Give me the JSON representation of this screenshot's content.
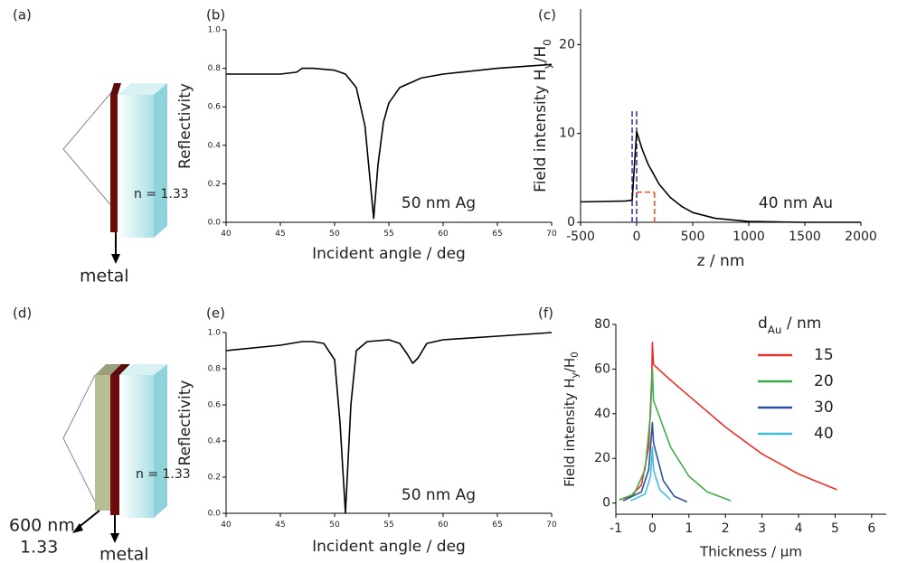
{
  "chart_data": [
    {
      "type": "line",
      "panel_label": "(b)",
      "xlabel": "Incident angle / deg",
      "ylabel": "Reflectivity",
      "annotation": "50 nm Ag",
      "xlim": [
        40,
        70
      ],
      "ylim": [
        0,
        1
      ],
      "xticks": [
        40,
        45,
        50,
        55,
        60,
        65,
        70
      ],
      "yticks": [
        {
          "value": 0,
          "label": "0.0"
        },
        {
          "value": 0.2,
          "label": "0.2"
        },
        {
          "value": 0.4,
          "label": "0.4"
        },
        {
          "value": 0.6,
          "label": "0.6"
        },
        {
          "value": 0.8,
          "label": "0.8"
        },
        {
          "value": 1,
          "label": "1.0"
        }
      ],
      "series": [
        {
          "color": "#000000",
          "x": [
            40,
            45,
            46.5,
            47,
            48,
            50,
            51,
            52,
            52.8,
            53.3,
            53.6,
            54,
            54.5,
            55,
            56,
            58,
            60,
            65,
            70
          ],
          "values": [
            0.77,
            0.77,
            0.78,
            0.8,
            0.8,
            0.79,
            0.77,
            0.7,
            0.5,
            0.2,
            0.02,
            0.3,
            0.52,
            0.62,
            0.7,
            0.75,
            0.77,
            0.8,
            0.82
          ]
        }
      ]
    },
    {
      "type": "line",
      "panel_label": "(c)",
      "xlabel": "z / nm",
      "ylabel_parts": [
        {
          "text": "Field intensity H"
        },
        {
          "text": "y",
          "sub": true
        },
        {
          "text": "/H"
        },
        {
          "text": "0",
          "sub": true
        }
      ],
      "annotation": "40 nm Au",
      "xlim": [
        -500,
        2000
      ],
      "ylim": [
        0,
        24
      ],
      "xticks": [
        -500,
        0,
        500,
        1000,
        1500,
        2000
      ],
      "yticks": [
        0,
        10,
        20
      ],
      "dashed_lines": [
        {
          "x": [
            -40,
            -40
          ],
          "y": [
            0,
            12.5
          ],
          "color": "#2e3192"
        },
        {
          "x": [
            0,
            0
          ],
          "y": [
            0,
            12.5
          ],
          "color": "#2e3192"
        },
        {
          "x": [
            0,
            160
          ],
          "y": [
            3.4,
            3.4
          ],
          "color": "#f04e23"
        },
        {
          "x": [
            160,
            160
          ],
          "y": [
            0,
            3.4
          ],
          "color": "#f04e23"
        }
      ],
      "series": [
        {
          "color": "#000000",
          "x": [
            -500,
            -100,
            -40,
            0,
            50,
            100,
            200,
            300,
            400,
            500,
            700,
            1000,
            1500,
            2000
          ],
          "values": [
            2.3,
            2.4,
            2.5,
            10.2,
            8.2,
            6.6,
            4.3,
            2.8,
            1.8,
            1.1,
            0.45,
            0.1,
            0,
            0
          ]
        }
      ]
    },
    {
      "type": "line",
      "panel_label": "(e)",
      "xlabel": "Incident angle / deg",
      "ylabel": "Reflectivity",
      "annotation": "50 nm Ag",
      "xlim": [
        40,
        70
      ],
      "ylim": [
        0,
        1
      ],
      "xticks": [
        40,
        45,
        50,
        55,
        60,
        65,
        70
      ],
      "yticks": [
        {
          "value": 0,
          "label": "0.0"
        },
        {
          "value": 0.2,
          "label": "0.2"
        },
        {
          "value": 0.4,
          "label": "0.4"
        },
        {
          "value": 0.6,
          "label": "0.6"
        },
        {
          "value": 0.8,
          "label": "0.8"
        },
        {
          "value": 1,
          "label": "1.0"
        }
      ],
      "series": [
        {
          "color": "#000000",
          "x": [
            40,
            45,
            47,
            48,
            49,
            50,
            50.5,
            51,
            51.5,
            52,
            53,
            55,
            56,
            56.7,
            57.2,
            57.7,
            58.5,
            60,
            65,
            70
          ],
          "values": [
            0.9,
            0.93,
            0.95,
            0.95,
            0.94,
            0.85,
            0.5,
            0.0,
            0.6,
            0.9,
            0.95,
            0.96,
            0.94,
            0.88,
            0.83,
            0.86,
            0.94,
            0.96,
            0.98,
            1.0
          ]
        }
      ]
    },
    {
      "type": "line",
      "panel_label": "(f)",
      "xlabel": "Thickness / µm",
      "ylabel_parts": [
        {
          "text": "Field intensity H"
        },
        {
          "text": "y",
          "sub": true
        },
        {
          "text": "/H"
        },
        {
          "text": "0",
          "sub": true
        }
      ],
      "legend_title_parts": [
        {
          "text": "d"
        },
        {
          "text": "Au",
          "sub": true
        },
        {
          "text": " / nm"
        }
      ],
      "xlim": [
        -1,
        6.4
      ],
      "ylim": [
        -5,
        80
      ],
      "xticks": [
        -1,
        0,
        1,
        2,
        3,
        4,
        5,
        6
      ],
      "yticks": [
        0,
        20,
        40,
        60,
        80
      ],
      "series": [
        {
          "name": "15",
          "color": "#e8312a",
          "x": [
            -0.9,
            -0.6,
            -0.3,
            -0.1,
            -0.02,
            0,
            0.03,
            0.5,
            1,
            2,
            3,
            4,
            5.05
          ],
          "values": [
            1.5,
            3,
            8,
            25,
            55,
            72,
            62,
            55,
            48,
            34,
            22,
            13,
            6
          ]
        },
        {
          "name": "20",
          "color": "#3fae49",
          "x": [
            -0.9,
            -0.5,
            -0.2,
            -0.05,
            0,
            0.03,
            0.5,
            1,
            1.5,
            2.15
          ],
          "values": [
            1.5,
            4,
            15,
            40,
            60,
            46,
            25,
            12,
            5,
            1
          ]
        },
        {
          "name": "30",
          "color": "#2e4fa3",
          "x": [
            -0.8,
            -0.3,
            -0.1,
            0,
            0.03,
            0.3,
            0.6,
            0.95
          ],
          "values": [
            1,
            5,
            15,
            36,
            27,
            10,
            3,
            0.5
          ]
        },
        {
          "name": "40",
          "color": "#3cc0e0",
          "x": [
            -0.6,
            -0.2,
            -0.05,
            0,
            0.03,
            0.2,
            0.5
          ],
          "values": [
            1,
            4,
            12,
            25,
            15,
            6,
            1.5
          ]
        }
      ]
    }
  ],
  "diagrams": [
    {
      "label": "(a)",
      "index": "n = 1.33",
      "metal": "metal"
    },
    {
      "label": "(d)",
      "index": "n = 1.33",
      "layer_thickness": "600 nm",
      "layer_index": "1.33",
      "metal": "metal"
    }
  ]
}
